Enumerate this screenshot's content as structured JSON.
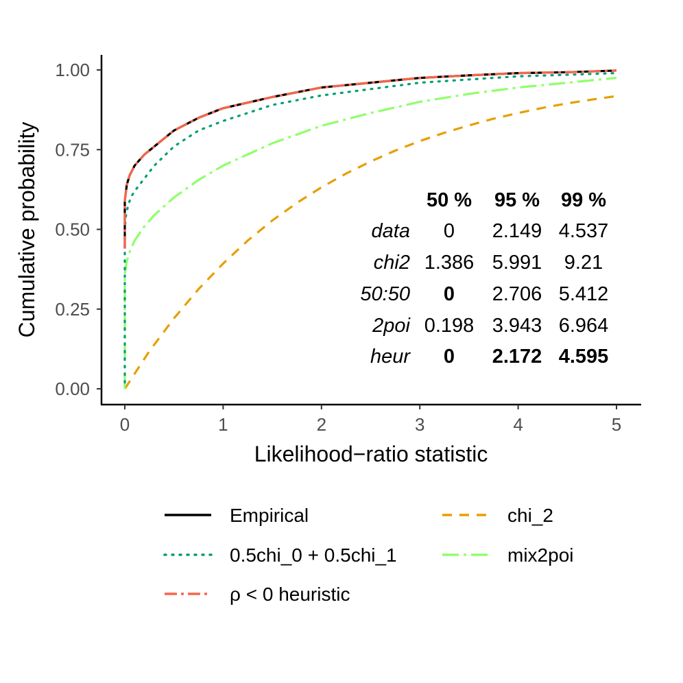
{
  "chart_data": {
    "type": "line",
    "xlabel": "Likelihood−ratio statistic",
    "ylabel": "Cumulative probability",
    "xlim": [
      0,
      5
    ],
    "ylim": [
      0,
      1
    ],
    "x_ticks": [
      "0",
      "1",
      "2",
      "3",
      "4",
      "5"
    ],
    "y_ticks": [
      "0.00",
      "0.25",
      "0.50",
      "0.75",
      "1.00"
    ],
    "grid": false,
    "series": [
      {
        "name": "Empirical",
        "key": "empirical",
        "color": "#000000",
        "dash": "solid",
        "points": [
          [
            0,
            0.44
          ],
          [
            0,
            0.59
          ],
          [
            0.02,
            0.64
          ],
          [
            0.05,
            0.67
          ],
          [
            0.1,
            0.7
          ],
          [
            0.2,
            0.735
          ],
          [
            0.3,
            0.76
          ],
          [
            0.5,
            0.81
          ],
          [
            0.75,
            0.85
          ],
          [
            1,
            0.88
          ],
          [
            1.5,
            0.915
          ],
          [
            2,
            0.945
          ],
          [
            2.5,
            0.96
          ],
          [
            3,
            0.975
          ],
          [
            3.5,
            0.983
          ],
          [
            4,
            0.99
          ],
          [
            4.5,
            0.993
          ],
          [
            5,
            0.998
          ]
        ]
      },
      {
        "name": "0.5chi_0 + 0.5chi_1",
        "key": "mix01",
        "color": "#009E73",
        "dash": "dotted",
        "points": [
          [
            0,
            0.02
          ],
          [
            0,
            0.5
          ],
          [
            0.01,
            0.54
          ],
          [
            0.03,
            0.57
          ],
          [
            0.06,
            0.6
          ],
          [
            0.1,
            0.62
          ],
          [
            0.2,
            0.66
          ],
          [
            0.3,
            0.7
          ],
          [
            0.5,
            0.76
          ],
          [
            0.75,
            0.81
          ],
          [
            1,
            0.84
          ],
          [
            1.5,
            0.89
          ],
          [
            2,
            0.92
          ],
          [
            2.5,
            0.94
          ],
          [
            3,
            0.96
          ],
          [
            3.5,
            0.97
          ],
          [
            4,
            0.98
          ],
          [
            4.5,
            0.985
          ],
          [
            5,
            0.99
          ]
        ]
      },
      {
        "name": "ρ < 0 heuristic",
        "key": "heur",
        "color": "#F8654A",
        "dash": "dashdot",
        "points": [
          [
            0,
            0.44
          ],
          [
            0,
            0.59
          ],
          [
            0.02,
            0.64
          ],
          [
            0.05,
            0.67
          ],
          [
            0.1,
            0.7
          ],
          [
            0.2,
            0.735
          ],
          [
            0.3,
            0.76
          ],
          [
            0.5,
            0.81
          ],
          [
            0.75,
            0.85
          ],
          [
            1,
            0.88
          ],
          [
            1.5,
            0.915
          ],
          [
            2,
            0.945
          ],
          [
            2.5,
            0.96
          ],
          [
            3,
            0.975
          ],
          [
            3.5,
            0.983
          ],
          [
            4,
            0.99
          ],
          [
            4.5,
            0.993
          ],
          [
            5,
            0.998
          ]
        ]
      },
      {
        "name": "chi_2",
        "key": "chi2",
        "color": "#E69F00",
        "dash": "dashed",
        "points": [
          [
            0,
            0
          ],
          [
            0.25,
            0.118
          ],
          [
            0.5,
            0.221
          ],
          [
            0.75,
            0.313
          ],
          [
            1,
            0.393
          ],
          [
            1.25,
            0.465
          ],
          [
            1.5,
            0.528
          ],
          [
            1.75,
            0.583
          ],
          [
            2,
            0.632
          ],
          [
            2.25,
            0.675
          ],
          [
            2.5,
            0.713
          ],
          [
            2.75,
            0.747
          ],
          [
            3,
            0.777
          ],
          [
            3.25,
            0.803
          ],
          [
            3.5,
            0.826
          ],
          [
            3.75,
            0.847
          ],
          [
            4,
            0.865
          ],
          [
            4.25,
            0.881
          ],
          [
            4.5,
            0.895
          ],
          [
            4.75,
            0.907
          ],
          [
            5,
            0.918
          ]
        ]
      },
      {
        "name": "mix2poi",
        "key": "mix2poi",
        "color": "#8FFF6A",
        "dash": "longdashdot",
        "points": [
          [
            0,
            0
          ],
          [
            0,
            0.36
          ],
          [
            0.02,
            0.4
          ],
          [
            0.05,
            0.43
          ],
          [
            0.1,
            0.465
          ],
          [
            0.2,
            0.51
          ],
          [
            0.3,
            0.545
          ],
          [
            0.5,
            0.6
          ],
          [
            0.75,
            0.655
          ],
          [
            1,
            0.7
          ],
          [
            1.5,
            0.77
          ],
          [
            2,
            0.825
          ],
          [
            2.5,
            0.865
          ],
          [
            3,
            0.9
          ],
          [
            3.5,
            0.925
          ],
          [
            4,
            0.945
          ],
          [
            4.5,
            0.96
          ],
          [
            5,
            0.975
          ]
        ]
      }
    ],
    "quantile_table": {
      "columns": [
        "50 %",
        "95 %",
        "99 %"
      ],
      "rows": [
        {
          "label": "data",
          "values": [
            "0",
            "2.149",
            "4.537"
          ],
          "bold": [
            false,
            false,
            false
          ]
        },
        {
          "label": "chi2",
          "values": [
            "1.386",
            "5.991",
            "9.21"
          ],
          "bold": [
            false,
            false,
            false
          ]
        },
        {
          "label": "50:50",
          "values": [
            "0",
            "2.706",
            "5.412"
          ],
          "bold": [
            true,
            false,
            false
          ]
        },
        {
          "label": "2poi",
          "values": [
            "0.198",
            "3.943",
            "6.964"
          ],
          "bold": [
            false,
            false,
            false
          ]
        },
        {
          "label": "heur",
          "values": [
            "0",
            "2.172",
            "4.595"
          ],
          "bold": [
            true,
            true,
            true
          ]
        }
      ]
    },
    "legend": {
      "position": "bottom",
      "items": [
        {
          "key": "empirical",
          "label": "Empirical"
        },
        {
          "key": "chi2",
          "label": "chi_2"
        },
        {
          "key": "mix01",
          "label": "0.5chi_0 + 0.5chi_1"
        },
        {
          "key": "mix2poi",
          "label": "mix2poi"
        },
        {
          "key": "heur",
          "label": "ρ < 0 heuristic"
        }
      ]
    }
  }
}
